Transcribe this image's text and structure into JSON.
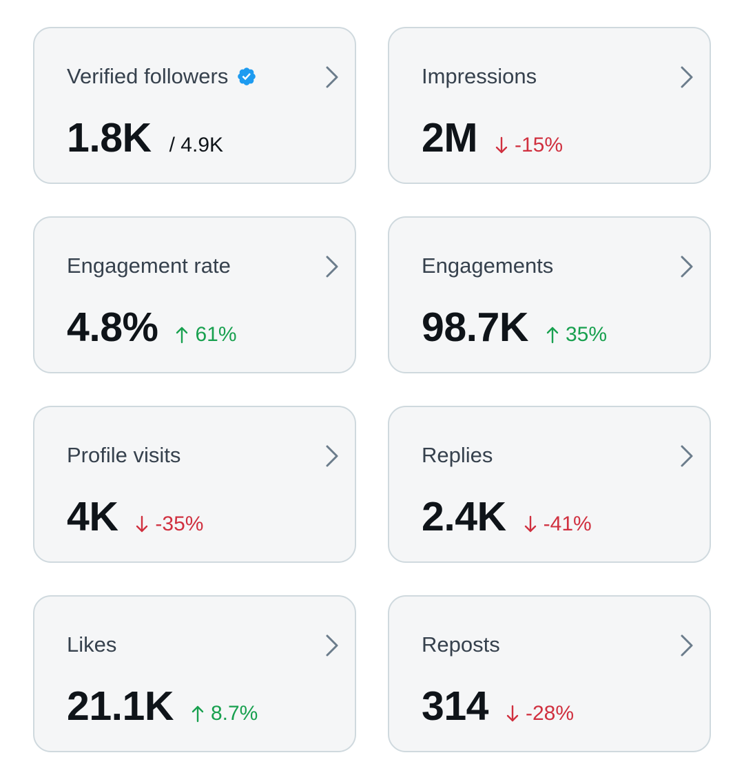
{
  "colors": {
    "card_bg": "#f5f6f7",
    "card_border": "#cfd9de",
    "title": "#36414d",
    "value": "#0f1419",
    "negative": "#d0303f",
    "positive": "#18a04f",
    "verified_badge": "#1d9bf0",
    "chevron": "#6b7c8b"
  },
  "cards": [
    {
      "title": "Verified followers",
      "value": "1.8K",
      "sub_total": "/ 4.9K",
      "verified_icon": "verified-badge-icon",
      "chevron_icon": "chevron-right-icon"
    },
    {
      "title": "Impressions",
      "value": "2M",
      "change": "-15%",
      "direction": "down",
      "arrow_icon": "arrow-down-icon",
      "chevron_icon": "chevron-right-icon"
    },
    {
      "title": "Engagement rate",
      "value": "4.8%",
      "change": "61%",
      "direction": "up",
      "arrow_icon": "arrow-up-icon",
      "chevron_icon": "chevron-right-icon"
    },
    {
      "title": "Engagements",
      "value": "98.7K",
      "change": "35%",
      "direction": "up",
      "arrow_icon": "arrow-up-icon",
      "chevron_icon": "chevron-right-icon"
    },
    {
      "title": "Profile visits",
      "value": "4K",
      "change": "-35%",
      "direction": "down",
      "arrow_icon": "arrow-down-icon",
      "chevron_icon": "chevron-right-icon"
    },
    {
      "title": "Replies",
      "value": "2.4K",
      "change": "-41%",
      "direction": "down",
      "arrow_icon": "arrow-down-icon",
      "chevron_icon": "chevron-right-icon"
    },
    {
      "title": "Likes",
      "value": "21.1K",
      "change": "8.7%",
      "direction": "up",
      "arrow_icon": "arrow-up-icon",
      "chevron_icon": "chevron-right-icon"
    },
    {
      "title": "Reposts",
      "value": "314",
      "change": "-28%",
      "direction": "down",
      "arrow_icon": "arrow-down-icon",
      "chevron_icon": "chevron-right-icon"
    }
  ]
}
